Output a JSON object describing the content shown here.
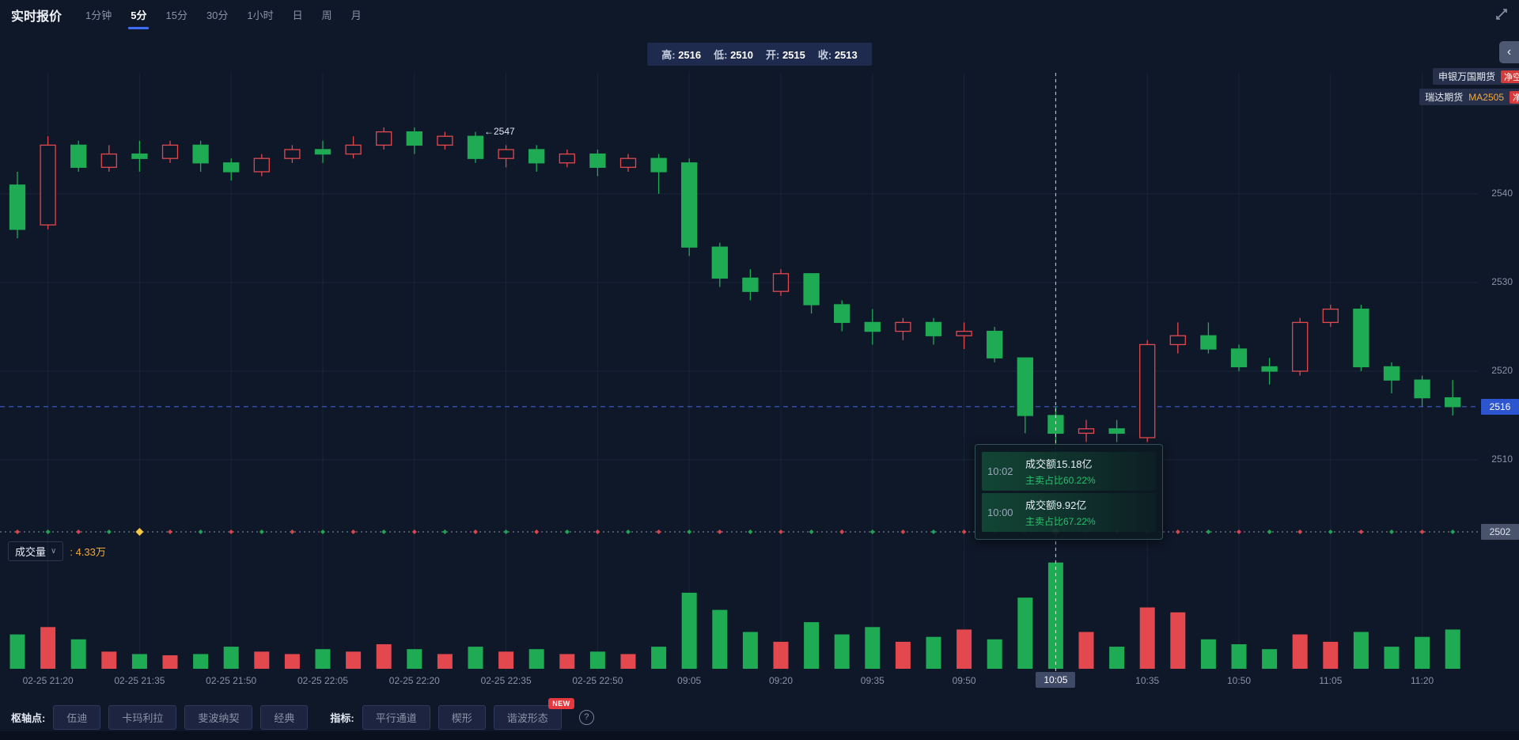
{
  "header": {
    "title": "实时报价",
    "tabs": [
      {
        "label": "1分钟",
        "active": false
      },
      {
        "label": "5分",
        "active": true
      },
      {
        "label": "15分",
        "active": false
      },
      {
        "label": "30分",
        "active": false
      },
      {
        "label": "1小时",
        "active": false
      },
      {
        "label": "日",
        "active": false
      },
      {
        "label": "周",
        "active": false
      },
      {
        "label": "月",
        "active": false
      }
    ]
  },
  "ohlc_bar": {
    "items": [
      {
        "label": "高:",
        "value": "2516"
      },
      {
        "label": "低:",
        "value": "2510"
      },
      {
        "label": "开:",
        "value": "2515"
      },
      {
        "label": "收:",
        "value": "2513"
      }
    ]
  },
  "panel_toggle": {
    "collapse_icon": "‹"
  },
  "brokers": [
    {
      "name": "申银万国期货",
      "alert": "净空"
    },
    {
      "name": "瑞达期货",
      "code": "MA2505",
      "alert": "净"
    }
  ],
  "tooltip": {
    "rows": [
      {
        "time": "10:02",
        "turnover": "成交额15.18亿",
        "sell_ratio": "主卖占比60.22%"
      },
      {
        "time": "10:00",
        "turnover": "成交额9.92亿",
        "sell_ratio": "主卖占比67.22%"
      }
    ]
  },
  "volume_header": {
    "label": "成交量",
    "caret": "∨",
    "value": ": 4.33万"
  },
  "axis": {
    "last_price_label": "2516",
    "lower_label": "2502"
  },
  "crosshair_badge": "10:05",
  "footer": {
    "pivot_label": "枢轴点:",
    "pivot_buttons": [
      "伍迪",
      "卡玛利拉",
      "斐波纳契",
      "经典"
    ],
    "indicator_label": "指标:",
    "indicator_buttons": [
      "平行通道",
      "楔形",
      "谐波形态"
    ],
    "new_badge": "NEW",
    "help": "?"
  },
  "colors": {
    "up_red": "#e2484e",
    "down_green": "#1fab54",
    "accent_blue": "#3e6ef5",
    "orange": "#f2a93b",
    "last_price_badge": "#2d55cf",
    "background": "#0f1829"
  },
  "chart_data": {
    "type": "candlestick",
    "title": "实时报价 5分 MA2505",
    "ohlc_format": [
      "open",
      "high",
      "low",
      "close"
    ],
    "ylim": [
      2500,
      2553
    ],
    "price_ticks": [
      2540,
      2530,
      2520,
      2510
    ],
    "last_price": 2516,
    "lower_line": 2502,
    "crosshair_index": 34,
    "up_color": "#e2484e",
    "down_color": "#1fab54",
    "high_annotation": {
      "index": 15,
      "price": 2547,
      "text": "←2547"
    },
    "time_labels": [
      {
        "index": 1,
        "label": "02-25 21:20"
      },
      {
        "index": 4,
        "label": "02-25 21:35"
      },
      {
        "index": 7,
        "label": "02-25 21:50"
      },
      {
        "index": 10,
        "label": "02-25 22:05"
      },
      {
        "index": 13,
        "label": "02-25 22:20"
      },
      {
        "index": 16,
        "label": "02-25 22:35"
      },
      {
        "index": 19,
        "label": "02-25 22:50"
      },
      {
        "index": 22,
        "label": "09:05"
      },
      {
        "index": 25,
        "label": "09:20"
      },
      {
        "index": 28,
        "label": "09:35"
      },
      {
        "index": 31,
        "label": "09:50"
      },
      {
        "index": 34,
        "label": "10:05"
      },
      {
        "index": 37,
        "label": "10:35"
      },
      {
        "index": 40,
        "label": "10:50"
      },
      {
        "index": 43,
        "label": "11:05"
      },
      {
        "index": 46,
        "label": "11:20"
      }
    ],
    "candles": [
      [
        2541,
        2542.5,
        2535,
        2536
      ],
      [
        2536.5,
        2546.5,
        2536,
        2545.5
      ],
      [
        2545.5,
        2546,
        2542.5,
        2543
      ],
      [
        2543,
        2545.5,
        2542.5,
        2544.5
      ],
      [
        2544.5,
        2546,
        2542.5,
        2544
      ],
      [
        2544,
        2546,
        2543.5,
        2545.5
      ],
      [
        2545.5,
        2546,
        2542.5,
        2543.5
      ],
      [
        2543.5,
        2544,
        2541.5,
        2542.5
      ],
      [
        2542.5,
        2544.5,
        2542,
        2544
      ],
      [
        2544,
        2545.5,
        2543.5,
        2545
      ],
      [
        2545,
        2546,
        2543.5,
        2544.5
      ],
      [
        2544.5,
        2546.5,
        2544,
        2545.5
      ],
      [
        2545.5,
        2547.5,
        2545,
        2547
      ],
      [
        2547,
        2547.5,
        2544.5,
        2545.5
      ],
      [
        2545.5,
        2547,
        2545,
        2546.5
      ],
      [
        2546.5,
        2547,
        2543.5,
        2544
      ],
      [
        2544,
        2545.5,
        2543,
        2545
      ],
      [
        2545,
        2545.5,
        2542.5,
        2543.5
      ],
      [
        2543.5,
        2545,
        2543,
        2544.5
      ],
      [
        2544.5,
        2545,
        2542,
        2543
      ],
      [
        2543,
        2544.5,
        2542.5,
        2544
      ],
      [
        2544,
        2544.5,
        2540,
        2542.5
      ],
      [
        2543.5,
        2544,
        2533,
        2534
      ],
      [
        2534,
        2534.5,
        2529.5,
        2530.5
      ],
      [
        2530.5,
        2531.5,
        2528,
        2529
      ],
      [
        2529,
        2531.5,
        2528.5,
        2531
      ],
      [
        2531,
        2531,
        2526.5,
        2527.5
      ],
      [
        2527.5,
        2528,
        2524.5,
        2525.5
      ],
      [
        2525.5,
        2527,
        2523,
        2524.5
      ],
      [
        2524.5,
        2526,
        2523.5,
        2525.5
      ],
      [
        2525.5,
        2526,
        2523,
        2524
      ],
      [
        2524,
        2525.5,
        2522.5,
        2524.5
      ],
      [
        2524.5,
        2525,
        2521,
        2521.5
      ],
      [
        2521.5,
        2521.5,
        2513,
        2515
      ],
      [
        2515,
        2516,
        2510,
        2513
      ],
      [
        2513,
        2514.5,
        2512,
        2513.5
      ],
      [
        2513.5,
        2514.5,
        2512,
        2513
      ],
      [
        2512.5,
        2523.5,
        2512,
        2523
      ],
      [
        2523,
        2525.5,
        2522,
        2524
      ],
      [
        2524,
        2525.5,
        2522,
        2522.5
      ],
      [
        2522.5,
        2523,
        2520,
        2520.5
      ],
      [
        2520.5,
        2521.5,
        2518.5,
        2520
      ],
      [
        2520,
        2526,
        2519.5,
        2525.5
      ],
      [
        2525.5,
        2527.5,
        2525,
        2527
      ],
      [
        2527,
        2527.5,
        2520,
        2520.5
      ],
      [
        2520.5,
        2521,
        2517.5,
        2519
      ],
      [
        2519,
        2519.5,
        2516,
        2517
      ],
      [
        2517,
        2519,
        2515,
        2516
      ]
    ],
    "volumes": {
      "unit": "万",
      "hovered_value": 4.33,
      "values": [
        1.4,
        1.7,
        1.2,
        0.7,
        0.6,
        0.55,
        0.6,
        0.9,
        0.7,
        0.6,
        0.8,
        0.7,
        1.0,
        0.8,
        0.6,
        0.9,
        0.7,
        0.8,
        0.6,
        0.7,
        0.6,
        0.9,
        3.1,
        2.4,
        1.5,
        1.1,
        1.9,
        1.4,
        1.7,
        1.1,
        1.3,
        1.6,
        1.2,
        2.9,
        4.33,
        1.5,
        0.9,
        2.5,
        2.3,
        1.2,
        1.0,
        0.8,
        1.4,
        1.1,
        1.5,
        0.9,
        1.3,
        1.6
      ]
    },
    "markers": [
      "r",
      "g",
      "r",
      "g",
      "y",
      "r",
      "g",
      "r",
      "g",
      "r",
      "g",
      "r",
      "g",
      "r",
      "g",
      "r",
      "g",
      "r",
      "g",
      "r",
      "g",
      "r",
      "g",
      "r",
      "g",
      "r",
      "g",
      "r",
      "g",
      "r",
      "g",
      "r",
      "g",
      "r",
      "y",
      "g",
      "r",
      "g",
      "r",
      "g",
      "r",
      "g",
      "r",
      "g",
      "r",
      "g",
      "r",
      "g"
    ]
  }
}
